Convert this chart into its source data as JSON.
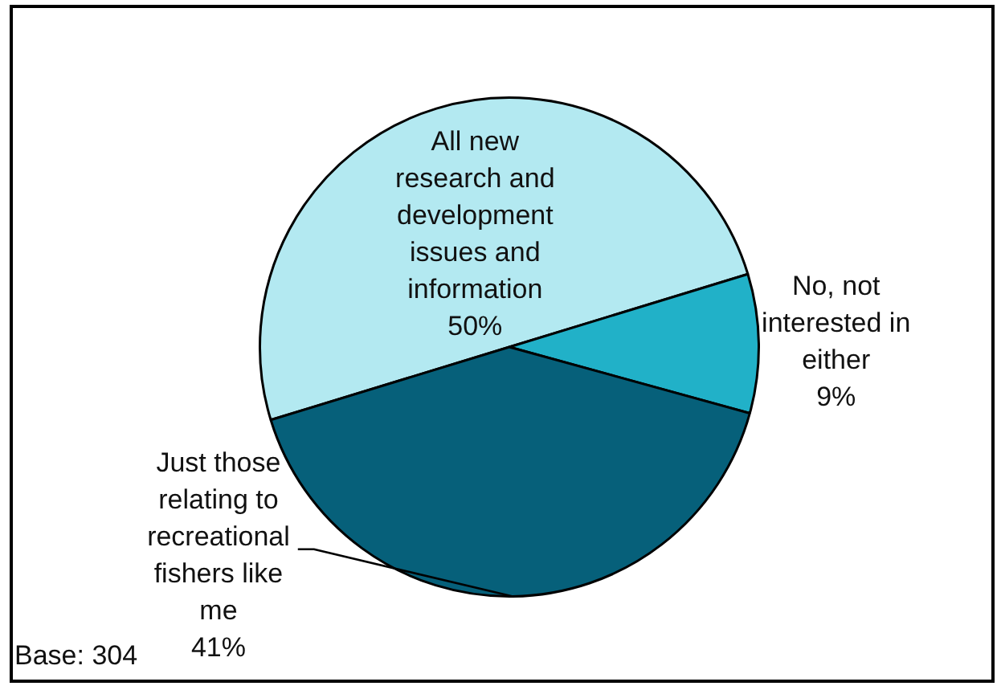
{
  "chart_data": {
    "type": "pie",
    "categories": [
      "All new research and development issues and information",
      "No, not interested in either",
      "Just those relating to recreational fishers like me"
    ],
    "values": [
      50,
      9,
      41
    ],
    "colors": [
      "#b3e9f1",
      "#21b1c8",
      "#06607a"
    ],
    "value_labels": [
      "50%",
      "9%",
      "41%"
    ],
    "annotations": [
      "Base: 304"
    ]
  }
}
